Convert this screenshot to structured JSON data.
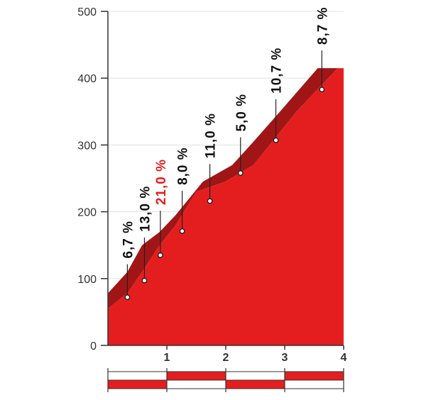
{
  "chart_data": {
    "type": "area",
    "title": "",
    "xlabel": "",
    "ylabel": "",
    "xlim": [
      0,
      4
    ],
    "ylim": [
      0,
      500
    ],
    "x_ticks": [
      "1",
      "2",
      "3",
      "4"
    ],
    "y_ticks": [
      "0",
      "100",
      "200",
      "300",
      "400",
      "500"
    ],
    "grid": true,
    "colors": {
      "fill": "#e41e1e",
      "band": "#a01616",
      "axis": "#333333",
      "grid": "#e0e0e0",
      "highlight": "#e41e1e",
      "label": "#111111"
    },
    "profile": [
      {
        "x": 0.0,
        "y": 55
      },
      {
        "x": 0.33,
        "y": 78
      },
      {
        "x": 0.58,
        "y": 110
      },
      {
        "x": 0.88,
        "y": 150
      },
      {
        "x": 1.15,
        "y": 180
      },
      {
        "x": 1.5,
        "y": 230
      },
      {
        "x": 1.99,
        "y": 245
      },
      {
        "x": 2.47,
        "y": 270
      },
      {
        "x": 3.2,
        "y": 350
      },
      {
        "x": 3.9,
        "y": 415
      },
      {
        "x": 4.0,
        "y": 415
      }
    ],
    "band_top": [
      {
        "x": 0.0,
        "y": 78
      },
      {
        "x": 0.33,
        "y": 110
      },
      {
        "x": 0.58,
        "y": 150
      },
      {
        "x": 0.88,
        "y": 170
      },
      {
        "x": 1.15,
        "y": 195
      },
      {
        "x": 1.61,
        "y": 245
      },
      {
        "x": 2.11,
        "y": 270
      },
      {
        "x": 2.47,
        "y": 305
      },
      {
        "x": 2.9,
        "y": 348
      },
      {
        "x": 3.56,
        "y": 415
      },
      {
        "x": 4.0,
        "y": 415
      }
    ],
    "grades": [
      {
        "label": "6,7 %",
        "x": 0.33,
        "y": 72,
        "label_y": 130,
        "highlight": false
      },
      {
        "label": "13,0 %",
        "x": 0.62,
        "y": 97,
        "label_y": 170,
        "highlight": false
      },
      {
        "label": "21,0 %",
        "x": 0.89,
        "y": 135,
        "label_y": 210,
        "highlight": true
      },
      {
        "label": "8,0 %",
        "x": 1.26,
        "y": 171,
        "label_y": 240,
        "highlight": false
      },
      {
        "label": "11,0 %",
        "x": 1.73,
        "y": 216,
        "label_y": 280,
        "highlight": false
      },
      {
        "label": "5,0 %",
        "x": 2.25,
        "y": 258,
        "label_y": 320,
        "highlight": false
      },
      {
        "label": "10,7 %",
        "x": 2.85,
        "y": 307,
        "label_y": 377,
        "highlight": false
      },
      {
        "label": "8,7 %",
        "x": 3.63,
        "y": 383,
        "label_y": 450,
        "highlight": false
      }
    ],
    "scale_bar": [
      {
        "from": 0,
        "to": 1,
        "top_filled": false
      },
      {
        "from": 1,
        "to": 2,
        "top_filled": true
      },
      {
        "from": 2,
        "to": 3,
        "top_filled": false
      },
      {
        "from": 3,
        "to": 4,
        "top_filled": true
      }
    ]
  }
}
